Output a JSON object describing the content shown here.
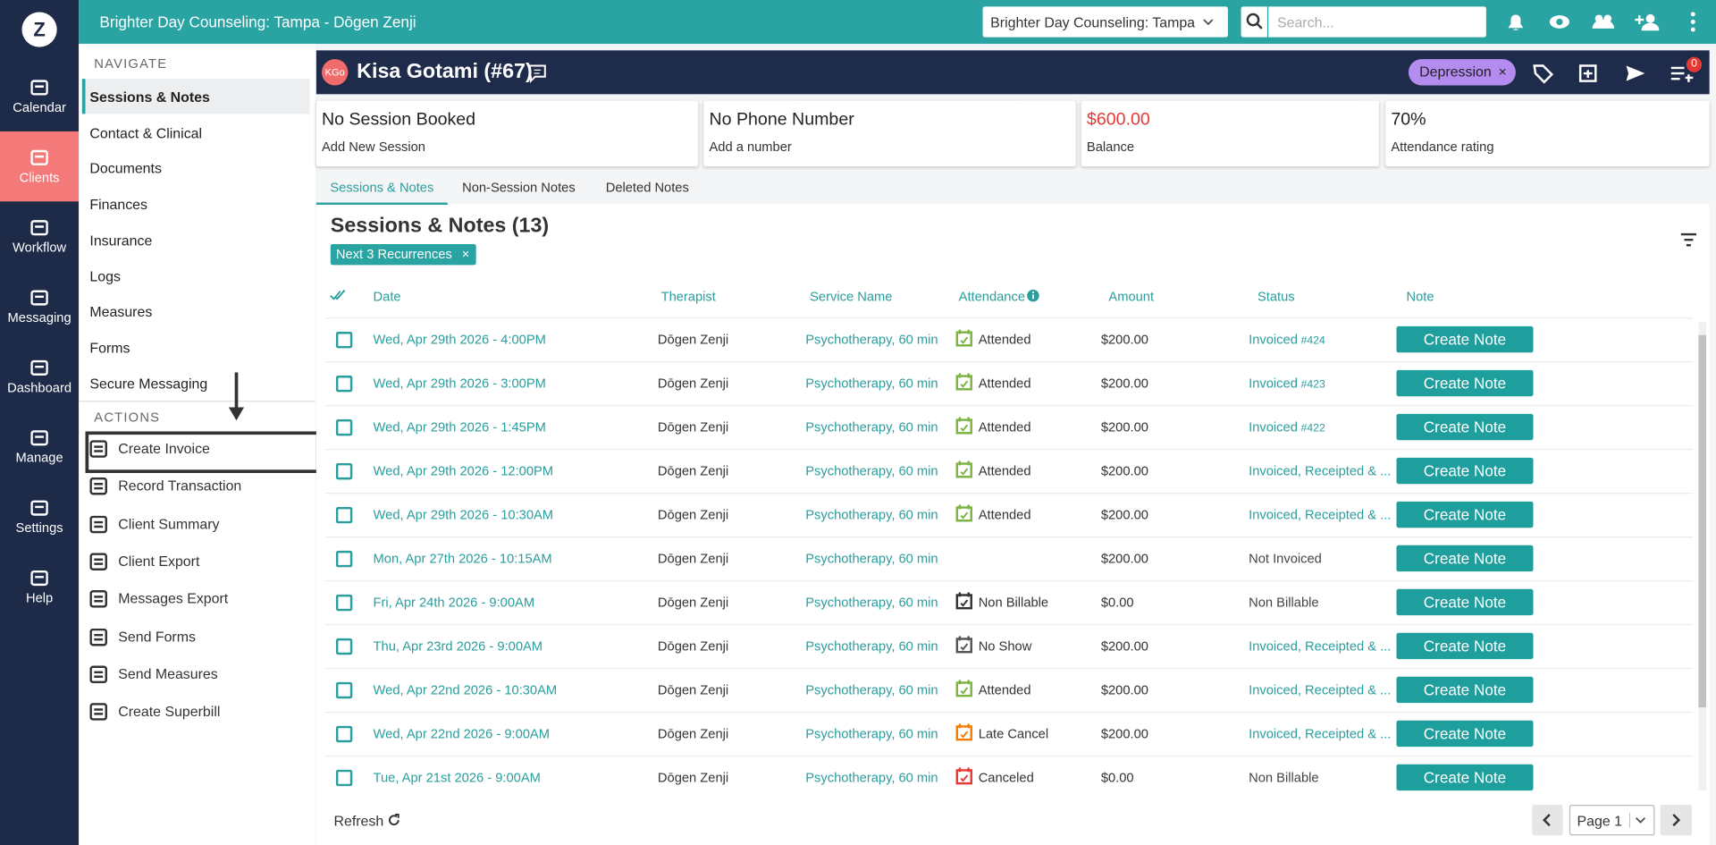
{
  "topbar": {
    "title": "Brighter Day Counseling: Tampa - Dōgen Zenji",
    "location": "Brighter Day Counseling: Tampa",
    "search_placeholder": "Search..."
  },
  "left_nav": {
    "logo": "Z",
    "items": [
      {
        "label": "Calendar"
      },
      {
        "label": "Clients",
        "active": true
      },
      {
        "label": "Workflow"
      },
      {
        "label": "Messaging"
      },
      {
        "label": "Dashboard"
      },
      {
        "label": "Manage"
      },
      {
        "label": "Settings"
      },
      {
        "label": "Help"
      }
    ]
  },
  "navigate": {
    "heading": "NAVIGATE",
    "items": [
      {
        "label": "Sessions & Notes",
        "active": true
      },
      {
        "label": "Contact & Clinical"
      },
      {
        "label": "Documents"
      },
      {
        "label": "Finances"
      },
      {
        "label": "Insurance"
      },
      {
        "label": "Logs"
      },
      {
        "label": "Measures"
      },
      {
        "label": "Forms"
      },
      {
        "label": "Secure Messaging"
      }
    ]
  },
  "actions": {
    "heading": "ACTIONS",
    "items": [
      "Create Invoice",
      "Record Transaction",
      "Client Summary",
      "Client Export",
      "Messages Export",
      "Send Forms",
      "Send Measures",
      "Create Superbill"
    ]
  },
  "client": {
    "initials": "KGo",
    "name": "Kisa Gotami (#67)",
    "tag": "Depression",
    "notification_count": "0"
  },
  "cards": [
    {
      "title": "No Session Booked",
      "subtitle": "Add New Session"
    },
    {
      "title": "No Phone Number",
      "subtitle": "Add a number"
    },
    {
      "title": "$600.00",
      "subtitle": "Balance",
      "color": "#e53935"
    },
    {
      "title": "70%",
      "subtitle": "Attendance rating"
    }
  ],
  "tabs": [
    {
      "label": "Sessions & Notes",
      "active": true
    },
    {
      "label": "Non-Session Notes"
    },
    {
      "label": "Deleted Notes"
    }
  ],
  "sessions": {
    "title": "Sessions & Notes (13)",
    "filter": "Next 3 Recurrences",
    "columns": [
      "Date",
      "Therapist",
      "Service Name",
      "Attendance",
      "Amount",
      "Status",
      "Note"
    ],
    "rows": [
      {
        "date": "Wed, Apr 29th 2026 - 4:00PM",
        "therapist": "Dōgen Zenji",
        "service": "Psychotherapy, 60 min",
        "attendance": "Attended",
        "attendance_color": "#7cb342",
        "amount": "$200.00",
        "status": "Invoiced",
        "invoice": "#424",
        "status_color": "#2a9d9d",
        "note": "Create Note"
      },
      {
        "date": "Wed, Apr 29th 2026 - 3:00PM",
        "therapist": "Dōgen Zenji",
        "service": "Psychotherapy, 60 min",
        "attendance": "Attended",
        "attendance_color": "#7cb342",
        "amount": "$200.00",
        "status": "Invoiced",
        "invoice": "#423",
        "status_color": "#2a9d9d",
        "note": "Create Note"
      },
      {
        "date": "Wed, Apr 29th 2026 - 1:45PM",
        "therapist": "Dōgen Zenji",
        "service": "Psychotherapy, 60 min",
        "attendance": "Attended",
        "attendance_color": "#7cb342",
        "amount": "$200.00",
        "status": "Invoiced",
        "invoice": "#422",
        "status_color": "#2a9d9d",
        "note": "Create Note"
      },
      {
        "date": "Wed, Apr 29th 2026 - 12:00PM",
        "therapist": "Dōgen Zenji",
        "service": "Psychotherapy, 60 min",
        "attendance": "Attended",
        "attendance_color": "#7cb342",
        "amount": "$200.00",
        "status": "Invoiced, Receipted & ...",
        "status_color": "#2a9d9d",
        "note": "Create Note"
      },
      {
        "date": "Wed, Apr 29th 2026 - 10:30AM",
        "therapist": "Dōgen Zenji",
        "service": "Psychotherapy, 60 min",
        "attendance": "Attended",
        "attendance_color": "#7cb342",
        "amount": "$200.00",
        "status": "Invoiced, Receipted & ...",
        "status_color": "#2a9d9d",
        "note": "Create Note"
      },
      {
        "date": "Mon, Apr 27th 2026 - 10:15AM",
        "therapist": "Dōgen Zenji",
        "service": "Psychotherapy, 60 min",
        "amount": "$200.00",
        "status": "Not Invoiced",
        "status_color": "#444444",
        "note": "Create Note"
      },
      {
        "date": "Fri, Apr 24th 2026 - 9:00AM",
        "therapist": "Dōgen Zenji",
        "service": "Psychotherapy, 60 min",
        "attendance": "Non Billable",
        "attendance_color": "#333333",
        "amount": "$0.00",
        "status": "Non Billable",
        "status_color": "#444444",
        "note": "Create Note"
      },
      {
        "date": "Thu, Apr 23rd 2026 - 9:00AM",
        "therapist": "Dōgen Zenji",
        "service": "Psychotherapy, 60 min",
        "attendance": "No Show",
        "attendance_color": "#555555",
        "amount": "$200.00",
        "status": "Invoiced, Receipted & ...",
        "status_color": "#2a9d9d",
        "note": "Create Note"
      },
      {
        "date": "Wed, Apr 22nd 2026 - 10:30AM",
        "therapist": "Dōgen Zenji",
        "service": "Psychotherapy, 60 min",
        "attendance": "Attended",
        "attendance_color": "#7cb342",
        "amount": "$200.00",
        "status": "Invoiced, Receipted & ...",
        "status_color": "#2a9d9d",
        "note": "Create Note"
      },
      {
        "date": "Wed, Apr 22nd 2026 - 9:00AM",
        "therapist": "Dōgen Zenji",
        "service": "Psychotherapy, 60 min",
        "attendance": "Late Cancel",
        "attendance_color": "#f57c00",
        "amount": "$200.00",
        "status": "Invoiced, Receipted & ...",
        "status_color": "#2a9d9d",
        "note": "Create Note"
      },
      {
        "date": "Tue, Apr 21st 2026 - 9:00AM",
        "therapist": "Dōgen Zenji",
        "service": "Psychotherapy, 60 min",
        "attendance": "Canceled",
        "attendance_color": "#e53935",
        "amount": "$0.00",
        "status": "Non Billable",
        "status_color": "#444444",
        "note": "Create Note"
      }
    ]
  },
  "footer": {
    "refresh": "Refresh",
    "page": "Page 1"
  }
}
